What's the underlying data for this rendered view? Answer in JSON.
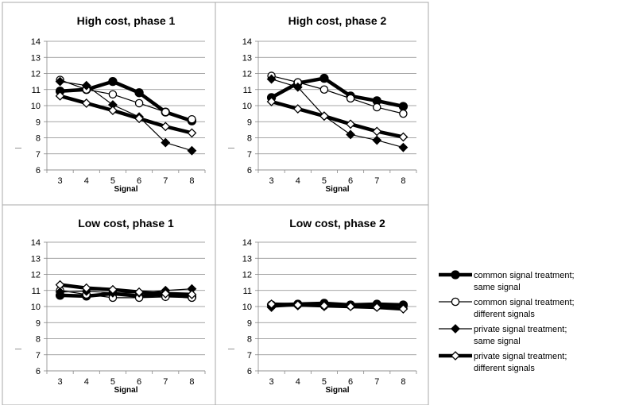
{
  "legend": [
    {
      "line1": "common signal treatment;",
      "line2": "same signal"
    },
    {
      "line1": "common signal treatment;",
      "line2": "different signals"
    },
    {
      "line1": "private signal treatment;",
      "line2": "same signal"
    },
    {
      "line1": "private signal treatment;",
      "line2": "different signals"
    }
  ],
  "chart_data": [
    {
      "type": "line",
      "title": "High cost, phase 1",
      "xlabel": "Signal",
      "ylabel": "",
      "x": [
        3,
        4,
        5,
        6,
        7,
        8
      ],
      "ylim": [
        6,
        14
      ],
      "yticks": [
        6,
        7,
        8,
        9,
        10,
        11,
        12,
        13,
        14
      ],
      "grid": true,
      "series": [
        {
          "name": "common signal treatment; same signal",
          "marker": "filled-circle",
          "values": [
            10.9,
            11.0,
            11.5,
            10.8,
            9.6,
            9.05
          ]
        },
        {
          "name": "common signal treatment; different signals",
          "marker": "open-circle",
          "values": [
            11.6,
            11.0,
            10.7,
            10.15,
            9.6,
            9.15
          ]
        },
        {
          "name": "private signal treatment; same signal",
          "marker": "filled-diamond",
          "values": [
            11.5,
            11.25,
            10.05,
            9.3,
            7.7,
            7.2
          ]
        },
        {
          "name": "private signal treatment; different signals",
          "marker": "open-diamond",
          "values": [
            10.6,
            10.15,
            9.7,
            9.2,
            8.7,
            8.3
          ]
        }
      ]
    },
    {
      "type": "line",
      "title": "High cost, phase 2",
      "xlabel": "Signal",
      "ylabel": "",
      "x": [
        3,
        4,
        5,
        6,
        7,
        8
      ],
      "ylim": [
        6,
        14
      ],
      "yticks": [
        6,
        7,
        8,
        9,
        10,
        11,
        12,
        13,
        14
      ],
      "grid": true,
      "series": [
        {
          "name": "common signal treatment; same signal",
          "marker": "filled-circle",
          "values": [
            10.5,
            11.4,
            11.7,
            10.6,
            10.3,
            9.95
          ]
        },
        {
          "name": "common signal treatment; different signals",
          "marker": "open-circle",
          "values": [
            11.85,
            11.45,
            11.0,
            10.45,
            9.9,
            9.5
          ]
        },
        {
          "name": "private signal treatment; same signal",
          "marker": "filled-diamond",
          "values": [
            11.65,
            11.15,
            9.35,
            8.2,
            7.85,
            7.4
          ]
        },
        {
          "name": "private signal treatment; different signals",
          "marker": "open-diamond",
          "values": [
            10.25,
            9.8,
            9.35,
            8.85,
            8.4,
            8.05
          ]
        }
      ]
    },
    {
      "type": "line",
      "title": "Low cost, phase 1",
      "xlabel": "Signal",
      "ylabel": "",
      "x": [
        3,
        4,
        5,
        6,
        7,
        8
      ],
      "ylim": [
        6,
        14
      ],
      "yticks": [
        6,
        7,
        8,
        9,
        10,
        11,
        12,
        13,
        14
      ],
      "grid": true,
      "series": [
        {
          "name": "common signal treatment; same signal",
          "marker": "filled-circle",
          "values": [
            10.7,
            10.65,
            10.8,
            10.65,
            10.75,
            10.6
          ]
        },
        {
          "name": "common signal treatment; different signals",
          "marker": "open-circle",
          "values": [
            11.0,
            10.75,
            10.55,
            10.55,
            10.6,
            10.55
          ]
        },
        {
          "name": "private signal treatment; same signal",
          "marker": "filled-diamond",
          "values": [
            10.9,
            10.95,
            10.85,
            10.85,
            11.0,
            11.1
          ]
        },
        {
          "name": "private signal treatment; different signals",
          "marker": "open-diamond",
          "values": [
            11.35,
            11.15,
            11.05,
            10.9,
            10.8,
            10.75
          ]
        }
      ]
    },
    {
      "type": "line",
      "title": "Low cost, phase 2",
      "xlabel": "Signal",
      "ylabel": "",
      "x": [
        3,
        4,
        5,
        6,
        7,
        8
      ],
      "ylim": [
        6,
        14
      ],
      "yticks": [
        6,
        7,
        8,
        9,
        10,
        11,
        12,
        13,
        14
      ],
      "grid": true,
      "series": [
        {
          "name": "common signal treatment; same signal",
          "marker": "filled-circle",
          "values": [
            10.1,
            10.15,
            10.2,
            10.1,
            10.15,
            10.1
          ]
        },
        {
          "name": "common signal treatment; different signals",
          "marker": "open-circle",
          "values": [
            10.05,
            10.1,
            10.05,
            10.05,
            10.0,
            9.95
          ]
        },
        {
          "name": "private signal treatment; same signal",
          "marker": "filled-diamond",
          "values": [
            9.95,
            10.05,
            10.0,
            10.05,
            10.0,
            10.05
          ]
        },
        {
          "name": "private signal treatment; different signals",
          "marker": "open-diamond",
          "values": [
            10.15,
            10.1,
            10.05,
            10.0,
            9.95,
            9.85
          ]
        }
      ]
    }
  ]
}
